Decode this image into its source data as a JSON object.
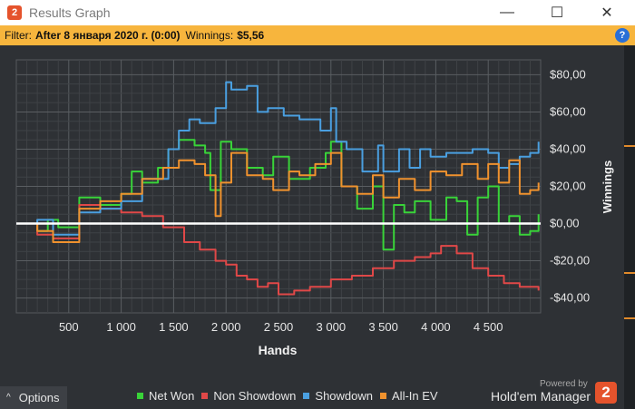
{
  "window": {
    "title": "Results Graph",
    "app_logo_text": "2",
    "minimize": "—",
    "maximize": "☐",
    "close": "✕"
  },
  "filter": {
    "label": "Filter:",
    "value": "After 8 января 2020 г. (0:00)",
    "winnings_label": "Winnings:",
    "winnings_value": "$5,56",
    "help": "?"
  },
  "footer": {
    "options_icon": "^",
    "options_label": "Options",
    "powered": "Powered by",
    "brand": "Hold'em Manager",
    "brand_logo": "2"
  },
  "colors": {
    "net_won": "#39d339",
    "non_showdown": "#e04848",
    "showdown": "#4a9fe0",
    "allin_ev": "#f0922e",
    "plot_bg": "#2e3135",
    "grid": "#505458",
    "zero_line": "#ffffff"
  },
  "chart_data": {
    "type": "line",
    "xlabel": "Hands",
    "ylabel": "Winnings",
    "xlim": [
      0,
      5000
    ],
    "ylim": [
      -48,
      88
    ],
    "x_ticks": [
      500,
      1000,
      1500,
      2000,
      2500,
      3000,
      3500,
      4000,
      4500
    ],
    "x_tick_labels": [
      "500",
      "1 000",
      "1 500",
      "2 000",
      "2 500",
      "3 000",
      "3 500",
      "4 000",
      "4 500"
    ],
    "y_ticks": [
      -40,
      -20,
      0,
      20,
      40,
      60,
      80
    ],
    "y_tick_labels": [
      "-$40,00",
      "-$20,00",
      "$0,00",
      "$20,00",
      "$40,00",
      "$60,00",
      "$80,00"
    ],
    "grid": true,
    "legend_position": "bottom",
    "series": [
      {
        "name": "Net Won",
        "color": "#39d339",
        "x": [
          0,
          200,
          300,
          400,
          600,
          800,
          1000,
          1100,
          1200,
          1350,
          1450,
          1550,
          1700,
          1800,
          1850,
          1950,
          2050,
          2200,
          2350,
          2450,
          2600,
          2800,
          2950,
          3000,
          3100,
          3250,
          3400,
          3500,
          3600,
          3700,
          3800,
          3950,
          4100,
          4200,
          4300,
          4400,
          4500,
          4600,
          4700,
          4800,
          4900,
          4980
        ],
        "y": [
          0,
          -4,
          2,
          -2,
          14,
          10,
          16,
          28,
          22,
          30,
          40,
          45,
          42,
          38,
          18,
          44,
          40,
          30,
          26,
          36,
          24,
          30,
          38,
          44,
          20,
          8,
          20,
          -14,
          10,
          6,
          12,
          2,
          14,
          12,
          -6,
          14,
          20,
          0,
          4,
          -6,
          -4,
          5
        ]
      },
      {
        "name": "Non Showdown",
        "color": "#e04848",
        "x": [
          0,
          200,
          350,
          600,
          800,
          1000,
          1200,
          1400,
          1600,
          1750,
          1900,
          2000,
          2100,
          2200,
          2300,
          2400,
          2500,
          2650,
          2800,
          3000,
          3200,
          3400,
          3600,
          3800,
          3950,
          4050,
          4200,
          4350,
          4500,
          4650,
          4800,
          4980
        ],
        "y": [
          0,
          -6,
          -8,
          10,
          8,
          6,
          4,
          -2,
          -10,
          -14,
          -20,
          -22,
          -28,
          -30,
          -34,
          -32,
          -38,
          -36,
          -34,
          -30,
          -28,
          -24,
          -20,
          -18,
          -16,
          -12,
          -16,
          -24,
          -28,
          -32,
          -34,
          -36
        ]
      },
      {
        "name": "Showdown",
        "color": "#4a9fe0",
        "x": [
          0,
          200,
          350,
          600,
          800,
          1000,
          1200,
          1450,
          1550,
          1650,
          1750,
          1900,
          2000,
          2050,
          2200,
          2300,
          2400,
          2550,
          2700,
          2900,
          3000,
          3050,
          3150,
          3300,
          3450,
          3500,
          3650,
          3750,
          3850,
          3950,
          4100,
          4200,
          4350,
          4500,
          4600,
          4700,
          4800,
          4900,
          4980
        ],
        "y": [
          0,
          2,
          -6,
          6,
          8,
          12,
          24,
          40,
          50,
          56,
          54,
          62,
          76,
          72,
          74,
          60,
          62,
          58,
          56,
          50,
          62,
          44,
          40,
          28,
          42,
          28,
          40,
          30,
          40,
          36,
          38,
          38,
          40,
          38,
          30,
          32,
          36,
          38,
          44
        ]
      },
      {
        "name": "All-In EV",
        "color": "#f0922e",
        "x": [
          0,
          200,
          350,
          600,
          800,
          1000,
          1200,
          1400,
          1550,
          1700,
          1800,
          1900,
          1950,
          2050,
          2200,
          2350,
          2450,
          2600,
          2700,
          2850,
          3000,
          3100,
          3250,
          3400,
          3500,
          3650,
          3800,
          3950,
          4100,
          4250,
          4400,
          4500,
          4600,
          4700,
          4800,
          4900,
          4980
        ],
        "y": [
          0,
          -4,
          -10,
          8,
          12,
          16,
          24,
          30,
          34,
          32,
          26,
          4,
          22,
          38,
          26,
          24,
          18,
          28,
          26,
          32,
          38,
          20,
          16,
          26,
          14,
          24,
          18,
          28,
          26,
          32,
          24,
          32,
          22,
          34,
          16,
          18,
          22
        ]
      }
    ]
  }
}
